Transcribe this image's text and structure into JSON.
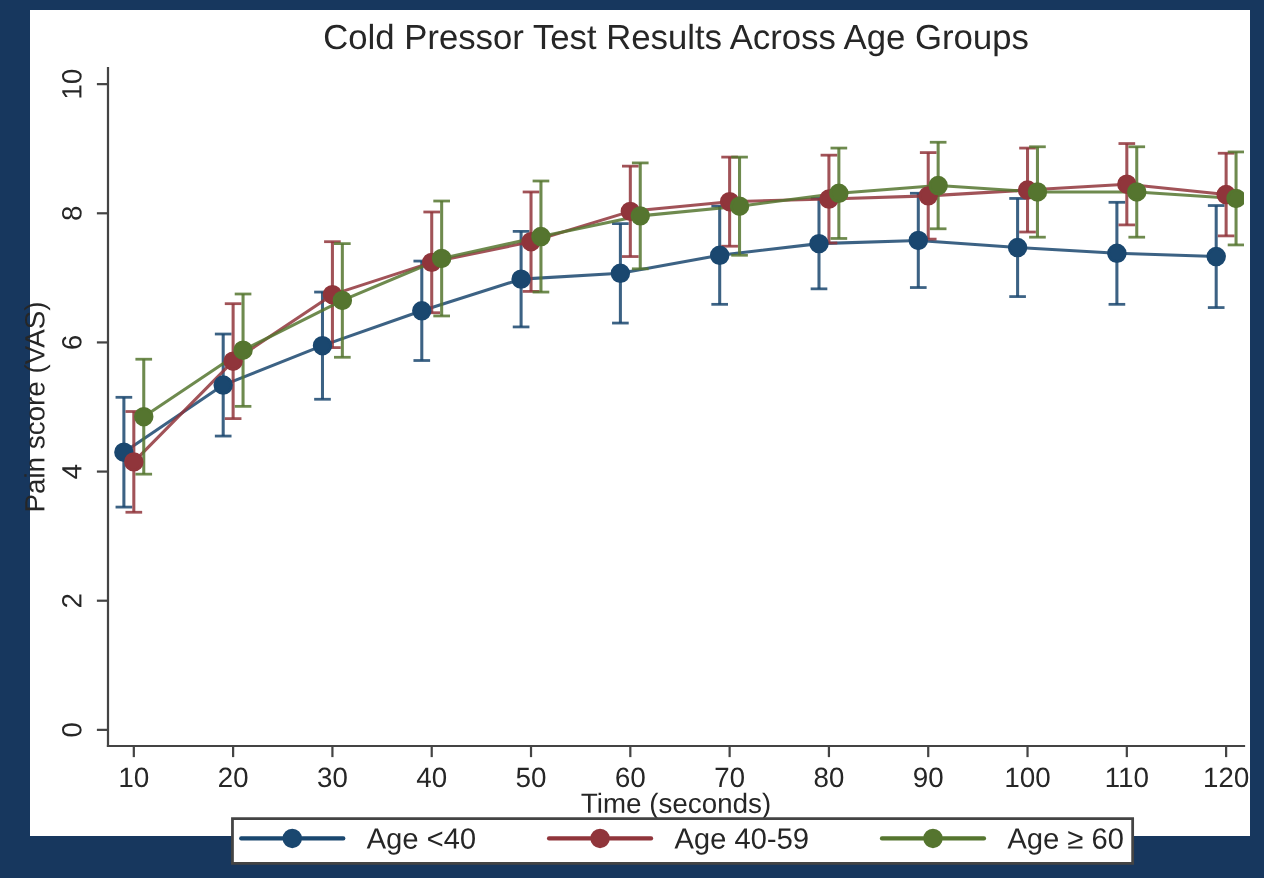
{
  "chart_data": {
    "type": "line",
    "title": "Cold Pressor Test Results Across Age Groups",
    "xlabel": "Time (seconds)",
    "ylabel": "Pain score (VAS)",
    "xlim": [
      7.4,
      121.8
    ],
    "ylim": [
      -0.25,
      10.25
    ],
    "xticks": [
      10,
      20,
      30,
      40,
      50,
      60,
      70,
      80,
      90,
      100,
      110,
      120
    ],
    "yticks": [
      0,
      2,
      4,
      6,
      8,
      10
    ],
    "grid": false,
    "legend": "bottom",
    "marker": "circle",
    "line_style": "solid",
    "series": [
      {
        "name": "Age <40",
        "color": "#1a476f",
        "x": [
          9,
          19,
          29,
          39,
          49,
          59,
          69,
          79,
          89,
          99,
          109,
          119
        ],
        "values": [
          4.3,
          5.34,
          5.95,
          6.49,
          6.98,
          7.07,
          7.35,
          7.53,
          7.58,
          7.47,
          7.38,
          7.33
        ],
        "errors": [
          0.85,
          0.79,
          0.83,
          0.77,
          0.74,
          0.77,
          0.76,
          0.7,
          0.73,
          0.76,
          0.79,
          0.79
        ]
      },
      {
        "name": "Age 40-59",
        "color": "#90353b",
        "x": [
          10,
          20,
          30,
          40,
          50,
          60,
          70,
          80,
          90,
          100,
          110,
          120
        ],
        "values": [
          4.15,
          5.71,
          6.74,
          7.24,
          7.56,
          8.03,
          8.18,
          8.22,
          8.27,
          8.36,
          8.45,
          8.29
        ],
        "errors": [
          0.78,
          0.89,
          0.82,
          0.78,
          0.77,
          0.7,
          0.69,
          0.68,
          0.67,
          0.65,
          0.63,
          0.64
        ]
      },
      {
        "name": "Age ≥ 60",
        "color": "#55752f",
        "x": [
          11,
          21,
          31,
          41,
          51,
          61,
          71,
          81,
          91,
          101,
          111,
          121
        ],
        "values": [
          4.85,
          5.88,
          6.65,
          7.3,
          7.64,
          7.96,
          8.11,
          8.31,
          8.43,
          8.33,
          8.33,
          8.23
        ],
        "errors": [
          0.89,
          0.87,
          0.88,
          0.89,
          0.86,
          0.82,
          0.76,
          0.7,
          0.67,
          0.7,
          0.7,
          0.72
        ]
      }
    ]
  }
}
